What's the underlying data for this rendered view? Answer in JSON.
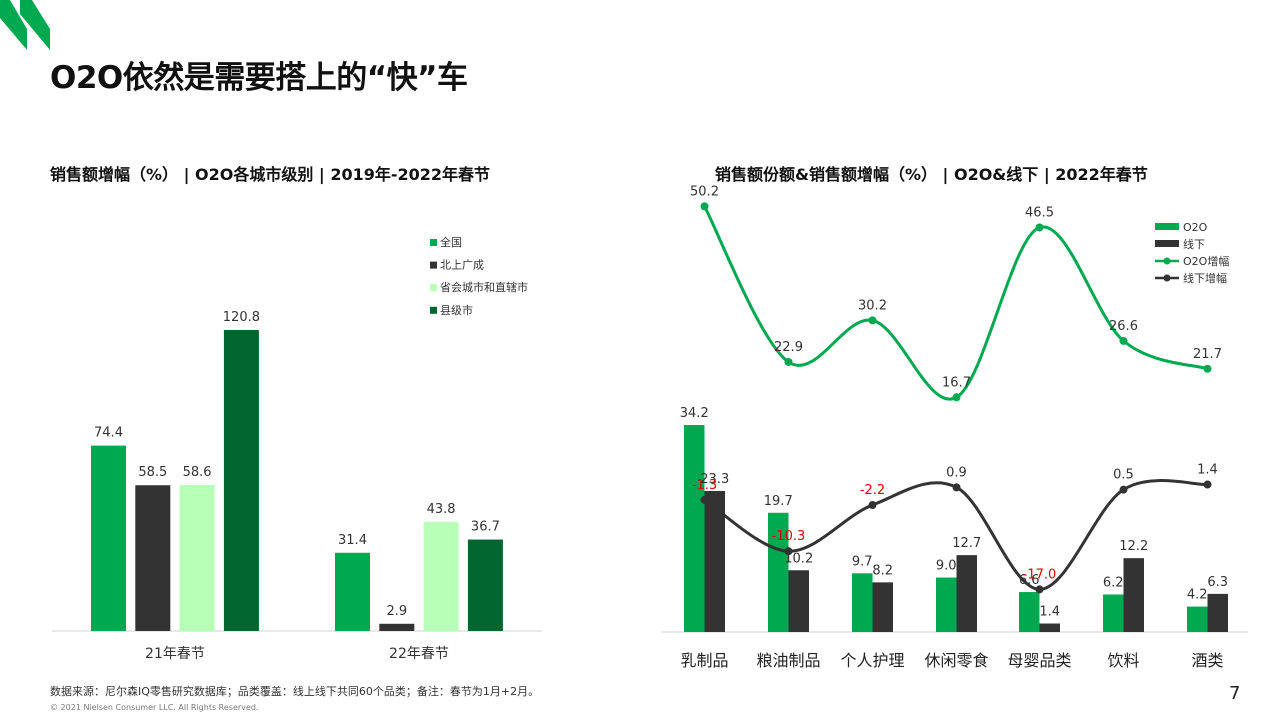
{
  "page": {
    "title": "O2O依然是需要搭上的“快”车",
    "footnote": "数据来源：尼尔森IQ零售研究数据库；品类覆盖：线上线下共同60个品类；备注：春节为1月+2月。",
    "copyright": "© 2021 Nielsen Consumer LLC. All Rights Reserved.",
    "page_number": "7"
  },
  "colors": {
    "brand_green": "#00a84f",
    "dark": "#333333",
    "light_green": "#b8ffb8",
    "deep_green": "#00652f",
    "negative_red": "#e00000"
  },
  "chart_data": [
    {
      "type": "bar",
      "title": "销售额增幅（%） | O2O各城市级别 | 2019年-2022年春节",
      "categories": [
        "21年春节",
        "22年春节"
      ],
      "series": [
        {
          "name": "全国",
          "values": [
            74.4,
            31.4
          ],
          "color": "#00a84f"
        },
        {
          "name": "北上广成",
          "values": [
            58.5,
            2.9
          ],
          "color": "#333333"
        },
        {
          "name": "省会城市和直辖市",
          "values": [
            58.6,
            43.8
          ],
          "color": "#b8ffb8"
        },
        {
          "name": "县级市",
          "values": [
            120.8,
            36.7
          ],
          "color": "#00652f"
        }
      ],
      "value_labels": [
        [
          "74.4",
          "31.4"
        ],
        [
          "58.5",
          "2.9"
        ],
        [
          "58.6",
          "43.8"
        ],
        [
          "120.8",
          "36.7"
        ]
      ],
      "ylim": [
        0,
        130
      ],
      "legend": "top-right",
      "grid": false
    },
    {
      "type": "bar",
      "title": "销售额份额&销售额增幅（%） | O2O&线下 | 2022年春节",
      "categories": [
        "乳制品",
        "粮油制品",
        "个人护理",
        "休闲零食",
        "母婴品类",
        "饮料",
        "酒类"
      ],
      "series": [
        {
          "name": "O2O",
          "values": [
            34.2,
            19.7,
            9.7,
            9.0,
            6.6,
            6.2,
            4.2
          ],
          "color": "#00a84f"
        },
        {
          "name": "线下",
          "values": [
            23.3,
            10.2,
            8.2,
            12.7,
            1.4,
            12.2,
            6.3
          ],
          "color": "#333333"
        }
      ],
      "bar_labels": [
        [
          "34.2",
          "19.7",
          "9.7",
          "9.0",
          "6.6",
          "6.2",
          "4.2"
        ],
        [
          "23.3",
          "10.2",
          "8.2",
          "12.7",
          "1.4",
          "12.2",
          "6.3"
        ]
      ],
      "lines": [
        {
          "name": "O2O增幅",
          "values": [
            50.2,
            22.9,
            30.2,
            16.7,
            46.5,
            26.6,
            21.7
          ],
          "labels": [
            "50.2",
            "22.9",
            "30.2",
            "16.7",
            "46.5",
            "26.6",
            "21.7"
          ],
          "color": "#00a84f"
        },
        {
          "name": "线下增幅",
          "values": [
            -1.3,
            -10.3,
            -2.2,
            0.9,
            -17.0,
            0.5,
            1.4
          ],
          "labels": [
            "-1.3",
            "-10.3",
            "-2.2",
            "0.9",
            "-17.0",
            "0.5",
            "1.4"
          ],
          "color": "#333333"
        }
      ],
      "bar_ylim": [
        0,
        40
      ],
      "line_ylim": [
        -100,
        70
      ],
      "legend": "top-right",
      "grid": false
    }
  ]
}
